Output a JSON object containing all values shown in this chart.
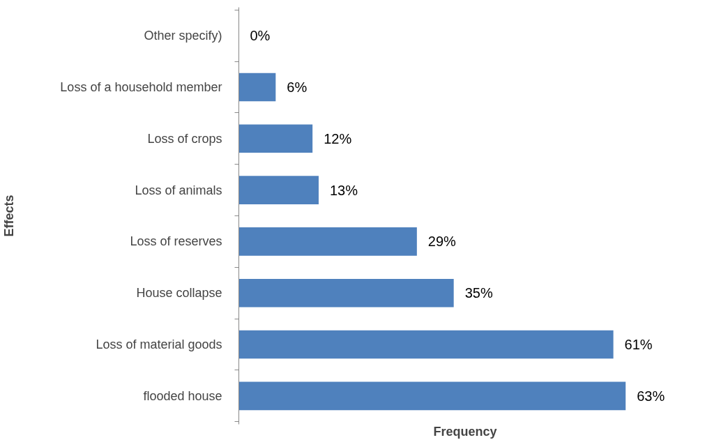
{
  "chart_data": {
    "type": "bar",
    "orientation": "horizontal",
    "xlabel": "Frequency",
    "ylabel": "Effects",
    "categories": [
      "Other specify)",
      "Loss of a household member",
      "Loss of crops",
      "Loss of animals",
      "Loss of reserves",
      "House collapse",
      "Loss of material goods",
      "flooded house"
    ],
    "values": [
      0,
      6,
      12,
      13,
      29,
      35,
      61,
      63
    ],
    "value_labels": [
      "0%",
      "6%",
      "12%",
      "13%",
      "29%",
      "35%",
      "61%",
      "63%"
    ],
    "color": "#4f81bd",
    "grid": false
  }
}
